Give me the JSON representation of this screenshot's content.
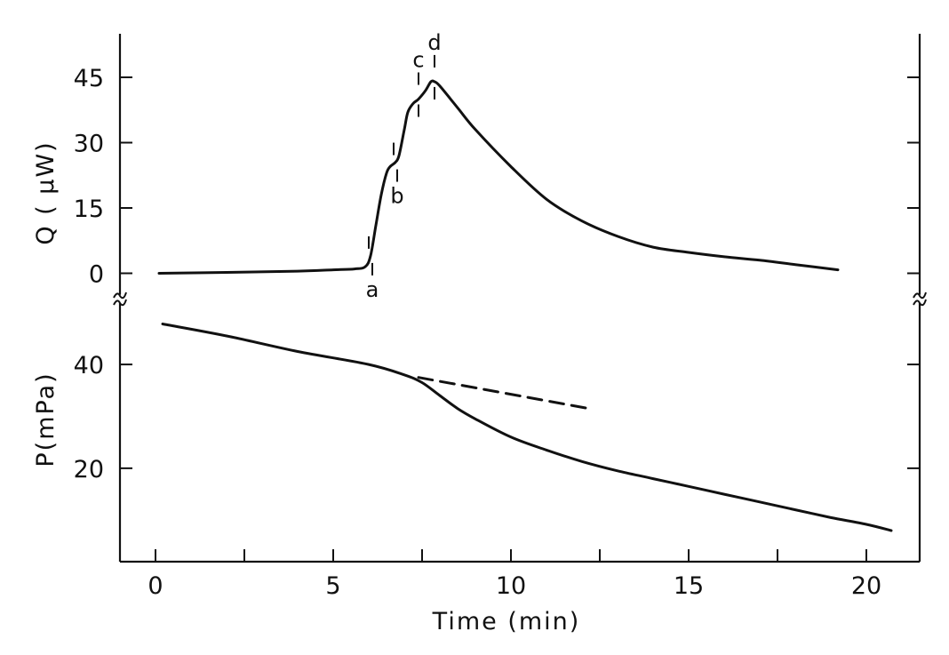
{
  "chart_data": [
    {
      "type": "line",
      "panel": "top",
      "ylabel": "Q ( μW)",
      "xlabel": "Time (min)",
      "xlim": [
        -1,
        21.5
      ],
      "ylim": [
        -5,
        55
      ],
      "yticks": [
        0,
        15,
        30,
        45
      ],
      "ytick_labels": [
        "0",
        "15",
        "30",
        "45"
      ],
      "series": [
        {
          "style": "solid",
          "x": [
            0.1,
            2,
            4,
            5,
            5.6,
            5.9,
            6.05,
            6.2,
            6.35,
            6.5,
            6.6,
            6.75,
            6.85,
            7.0,
            7.1,
            7.25,
            7.4,
            7.6,
            7.75,
            7.85,
            8.0,
            8.5,
            9,
            10,
            11,
            12,
            13,
            14,
            15,
            16,
            17,
            18,
            19.2
          ],
          "y": [
            0,
            0.2,
            0.5,
            0.8,
            1.0,
            1.5,
            4,
            11,
            18,
            23,
            24.5,
            25.5,
            27,
            33,
            37,
            39,
            40,
            42,
            44,
            44,
            43,
            38,
            33,
            24.5,
            17,
            12,
            8.5,
            6,
            4.8,
            3.8,
            3,
            2,
            0.8
          ]
        }
      ],
      "annotations": [
        {
          "label": "a",
          "x": 6.05,
          "label_pos": "below"
        },
        {
          "label": "b",
          "x": 6.75,
          "label_pos": "below"
        },
        {
          "label": "c",
          "x": 7.4,
          "label_pos": "above"
        },
        {
          "label": "d",
          "x": 7.85,
          "label_pos": "above"
        }
      ]
    },
    {
      "type": "line",
      "panel": "bottom",
      "ylabel": "P(mPa)",
      "xlabel": "Time (min)",
      "xlim": [
        -1,
        21.5
      ],
      "ylim": [
        2,
        52
      ],
      "yticks": [
        20,
        40
      ],
      "ytick_labels": [
        "20",
        "40"
      ],
      "xticks": [
        0,
        5,
        10,
        15,
        20
      ],
      "xtick_labels": [
        "0",
        "5",
        "10",
        "15",
        "20"
      ],
      "series": [
        {
          "style": "solid",
          "x": [
            0.2,
            2,
            4,
            6,
            7,
            7.5,
            8,
            8.5,
            9,
            10,
            11,
            12,
            13,
            14,
            15,
            16,
            17,
            18,
            19,
            20,
            20.7
          ],
          "y": [
            47.8,
            45.5,
            42.5,
            40,
            38,
            36.5,
            34,
            31.5,
            29.5,
            26,
            23.5,
            21.3,
            19.5,
            18,
            16.5,
            15,
            13.5,
            12,
            10.5,
            9.2,
            8
          ]
        },
        {
          "style": "dashed",
          "x": [
            7.4,
            12.2
          ],
          "y": [
            37.5,
            31.5
          ]
        }
      ]
    }
  ]
}
